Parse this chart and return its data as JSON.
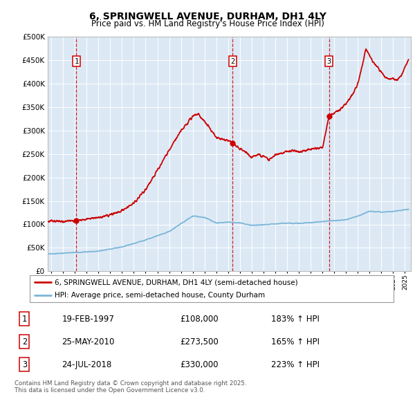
{
  "title": "6, SPRINGWELL AVENUE, DURHAM, DH1 4LY",
  "subtitle": "Price paid vs. HM Land Registry's House Price Index (HPI)",
  "legend_line1": "6, SPRINGWELL AVENUE, DURHAM, DH1 4LY (semi-detached house)",
  "legend_line2": "HPI: Average price, semi-detached house, County Durham",
  "sale_labels": [
    "1",
    "2",
    "3"
  ],
  "sale_dates_display": [
    "19-FEB-1997",
    "25-MAY-2010",
    "24-JUL-2018"
  ],
  "sale_prices_display": [
    "£108,000",
    "£273,500",
    "£330,000"
  ],
  "sale_hpi_display": [
    "183% ↑ HPI",
    "165% ↑ HPI",
    "223% ↑ HPI"
  ],
  "sale_years": [
    1997.13,
    2010.39,
    2018.56
  ],
  "sale_prices": [
    108000,
    273500,
    330000
  ],
  "footer": "Contains HM Land Registry data © Crown copyright and database right 2025.\nThis data is licensed under the Open Government Licence v3.0.",
  "bg_color": "#dce9f5",
  "red_color": "#cc0000",
  "blue_color": "#7ab5d8",
  "ylim": [
    0,
    500000
  ],
  "xlim_start": 1994.7,
  "xlim_end": 2025.5,
  "hpi_year_points": [
    1994.7,
    1995.5,
    1997,
    1999,
    2001,
    2003,
    2005,
    2007,
    2008,
    2009,
    2010,
    2011,
    2012,
    2013,
    2014,
    2015,
    2016,
    2017,
    2018,
    2019,
    2020,
    2021,
    2022,
    2023,
    2024,
    2025.3
  ],
  "hpi_val_points": [
    37000,
    38000,
    40000,
    43000,
    52000,
    67000,
    85000,
    118000,
    115000,
    103000,
    105000,
    103000,
    98000,
    99000,
    101000,
    103000,
    102000,
    104000,
    106000,
    108000,
    110000,
    118000,
    128000,
    126000,
    128000,
    132000
  ],
  "red_year_points": [
    1994.7,
    1996.5,
    1997.13,
    1998,
    1999,
    2000,
    2001,
    2002,
    2003,
    2004,
    2005,
    2006,
    2007.0,
    2007.5,
    2008.3,
    2009.0,
    2010.0,
    2010.39,
    2011.0,
    2011.5,
    2012.0,
    2012.5,
    2013.0,
    2013.5,
    2014.0,
    2014.5,
    2015.0,
    2015.5,
    2016.0,
    2016.5,
    2017.0,
    2017.5,
    2018.0,
    2018.56,
    2019.0,
    2019.5,
    2020.0,
    2020.5,
    2021.0,
    2021.3,
    2021.7,
    2022.0,
    2022.3,
    2022.7,
    2023.0,
    2023.3,
    2023.7,
    2024.0,
    2024.3,
    2024.7,
    2025.3
  ],
  "red_val_points": [
    107000,
    107000,
    108000,
    112000,
    115000,
    120000,
    130000,
    145000,
    175000,
    215000,
    258000,
    300000,
    330000,
    335000,
    310000,
    285000,
    278000,
    273500,
    260000,
    254000,
    243000,
    248000,
    245000,
    237000,
    248000,
    252000,
    255000,
    258000,
    255000,
    257000,
    261000,
    262000,
    263000,
    330000,
    338000,
    345000,
    358000,
    375000,
    400000,
    430000,
    475000,
    460000,
    445000,
    435000,
    425000,
    415000,
    408000,
    412000,
    408000,
    418000,
    450000
  ]
}
